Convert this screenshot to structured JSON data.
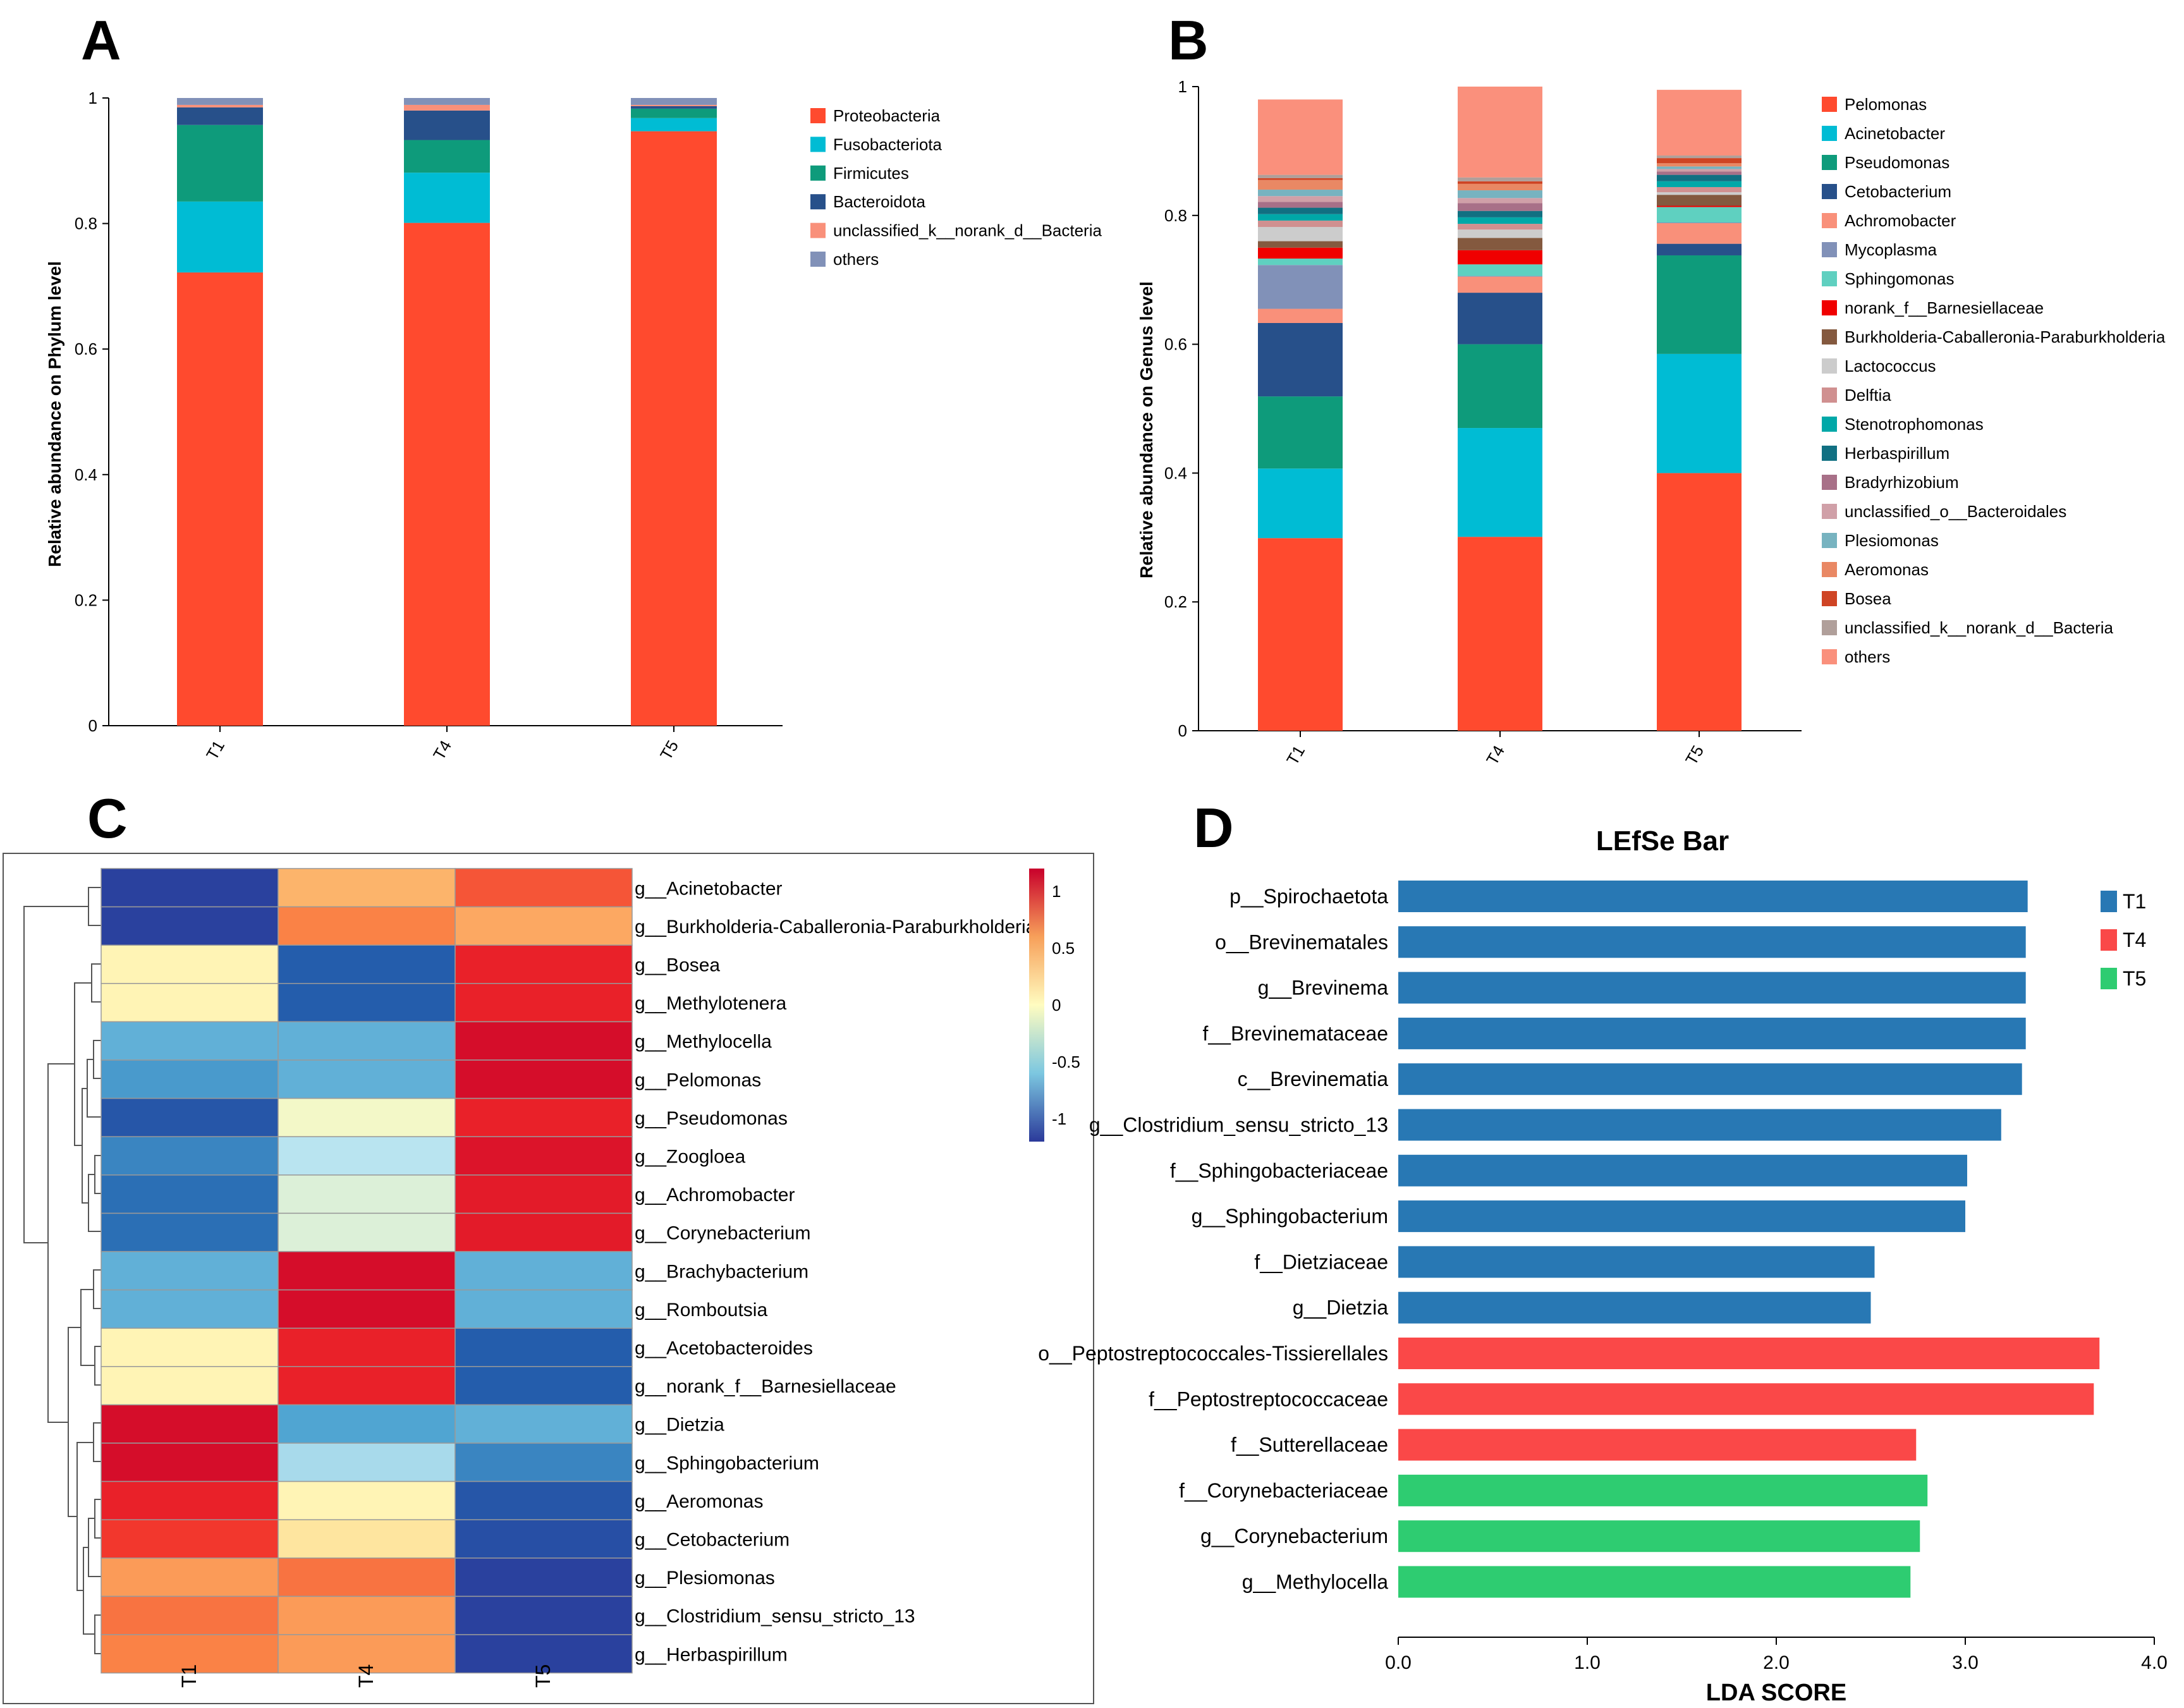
{
  "panels": {
    "A": {
      "label": "A",
      "chart_data": {
        "type": "stacked-bar",
        "categories": [
          "T1",
          "T4",
          "T5"
        ],
        "ylabel": "Relative abundance on Phylum level",
        "ylim": [
          0,
          1
        ],
        "yticks": [
          "0",
          "0.2",
          "0.4",
          "0.6",
          "0.8",
          "1"
        ],
        "series": [
          {
            "name": "Proteobacteria",
            "color": "#ff4a2e",
            "values": [
              0.722,
              0.801,
              0.947
            ]
          },
          {
            "name": "Fusobacteriota",
            "color": "#00bcd4",
            "values": [
              0.113,
              0.08,
              0.021
            ]
          },
          {
            "name": "Firmicutes",
            "color": "#0e9b7b",
            "values": [
              0.122,
              0.052,
              0.015
            ]
          },
          {
            "name": "Bacteroidota",
            "color": "#27508a",
            "values": [
              0.028,
              0.047,
              0.004
            ]
          },
          {
            "name": "unclassified_k__norank_d__Bacteria",
            "color": "#f9907a",
            "values": [
              0.004,
              0.009,
              0.002
            ]
          },
          {
            "name": "others",
            "color": "#8191b8",
            "values": [
              0.011,
              0.011,
              0.011
            ]
          }
        ]
      }
    },
    "B": {
      "label": "B",
      "chart_data": {
        "type": "stacked-bar",
        "categories": [
          "T1",
          "T4",
          "T5"
        ],
        "ylabel": "Relative abundance on Genus level",
        "ylim": [
          0,
          1
        ],
        "yticks": [
          "0",
          "0.2",
          "0.4",
          "0.6",
          "0.8",
          "1"
        ],
        "series": [
          {
            "name": "Pelomonas",
            "color": "#ff4a2e",
            "values": [
              0.299,
              0.301,
              0.4
            ]
          },
          {
            "name": "Acinetobacter",
            "color": "#00bcd4",
            "values": [
              0.108,
              0.169,
              0.185
            ]
          },
          {
            "name": "Pseudomonas",
            "color": "#0e9b7b",
            "values": [
              0.112,
              0.13,
              0.153
            ]
          },
          {
            "name": "Cetobacterium",
            "color": "#27508a",
            "values": [
              0.114,
              0.08,
              0.018
            ]
          },
          {
            "name": "Achromobacter",
            "color": "#f9907a",
            "values": [
              0.022,
              0.025,
              0.032
            ]
          },
          {
            "name": "Mycoplasma",
            "color": "#8191b8",
            "values": [
              0.068,
              0.001,
              0.001
            ]
          },
          {
            "name": "Sphingomonas",
            "color": "#5fd0c0",
            "values": [
              0.01,
              0.018,
              0.024
            ]
          },
          {
            "name": "norank_f__Barnesiellaceae",
            "color": "#f00000",
            "values": [
              0.017,
              0.022,
              0.002
            ]
          },
          {
            "name": "Burkholderia-Caballeronia-Paraburkholderia",
            "color": "#84593f",
            "values": [
              0.01,
              0.019,
              0.017
            ]
          },
          {
            "name": "Lactococcus",
            "color": "#cccccc",
            "values": [
              0.022,
              0.013,
              0.004
            ]
          },
          {
            "name": "Delftia",
            "color": "#d09090",
            "values": [
              0.01,
              0.009,
              0.008
            ]
          },
          {
            "name": "Stenotrophomonas",
            "color": "#00a8a8",
            "values": [
              0.01,
              0.01,
              0.009
            ]
          },
          {
            "name": "Herbaspirillum",
            "color": "#117082",
            "values": [
              0.01,
              0.01,
              0.01
            ]
          },
          {
            "name": "Bradyrhizobium",
            "color": "#a87088",
            "values": [
              0.009,
              0.012,
              0.005
            ]
          },
          {
            "name": "unclassified_o__Bacteroidales",
            "color": "#d0a0a8",
            "values": [
              0.009,
              0.008,
              0.004
            ]
          },
          {
            "name": "Plesiomonas",
            "color": "#77b3c0",
            "values": [
              0.01,
              0.012,
              0.004
            ]
          },
          {
            "name": "Aeromonas",
            "color": "#e98864",
            "values": [
              0.015,
              0.01,
              0.005
            ]
          },
          {
            "name": "Bosea",
            "color": "#cf4424",
            "values": [
              0.003,
              0.004,
              0.008
            ]
          },
          {
            "name": "unclassified_k__norank_d__Bacteria",
            "color": "#b09f9a",
            "values": [
              0.005,
              0.006,
              0.004
            ]
          },
          {
            "name": "others",
            "color": "#fa907c",
            "values": [
              0.117,
              0.141,
              0.102
            ]
          }
        ]
      }
    },
    "C": {
      "label": "C",
      "chart_data": {
        "type": "heatmap",
        "columns": [
          "T1",
          "T4",
          "T5"
        ],
        "rows": [
          "g__Acinetobacter",
          "g__Burkholderia-Caballeronia-Paraburkholderia",
          "g__Bosea",
          "g__Methylotenera",
          "g__Methylocella",
          "g__Pelomonas",
          "g__Pseudomonas",
          "g__Zoogloea",
          "g__Achromobacter",
          "g__Corynebacterium",
          "g__Brachybacterium",
          "g__Romboutsia",
          "g__Acetobacteroides",
          "g__norank_f__Barnesiellaceae",
          "g__Dietzia",
          "g__Sphingobacterium",
          "g__Aeromonas",
          "g__Cetobacterium",
          "g__Plesiomonas",
          "g__Clostridium_sensu_stricto_13",
          "g__Herbaspirillum"
        ],
        "values": [
          [
            -1.15,
            0.4,
            0.75
          ],
          [
            -1.15,
            0.6,
            0.45
          ],
          [
            0.05,
            -0.95,
            0.95
          ],
          [
            0.05,
            -0.95,
            0.95
          ],
          [
            -0.55,
            -0.55,
            1.1
          ],
          [
            -0.65,
            -0.55,
            1.1
          ],
          [
            -1.0,
            -0.05,
            0.95
          ],
          [
            -0.75,
            -0.3,
            1.05
          ],
          [
            -0.85,
            -0.15,
            1.0
          ],
          [
            -0.85,
            -0.15,
            1.0
          ],
          [
            -0.55,
            1.1,
            -0.55
          ],
          [
            -0.55,
            1.1,
            -0.55
          ],
          [
            0.05,
            0.95,
            -0.95
          ],
          [
            0.05,
            0.95,
            -0.95
          ],
          [
            1.1,
            -0.6,
            -0.55
          ],
          [
            1.1,
            -0.35,
            -0.75
          ],
          [
            0.95,
            0.05,
            -1.0
          ],
          [
            0.85,
            0.15,
            -1.05
          ],
          [
            0.5,
            0.65,
            -1.15
          ],
          [
            0.65,
            0.5,
            -1.15
          ],
          [
            0.6,
            0.5,
            -1.15
          ]
        ],
        "colorbar": {
          "ticks": [
            "1",
            "0.5",
            "0",
            "-0.5",
            "-1"
          ],
          "range": [
            -1.2,
            1.2
          ]
        }
      }
    },
    "D": {
      "label": "D",
      "chart_data": {
        "type": "bar",
        "orientation": "horizontal",
        "title": "LEfSe Bar",
        "xlabel": "LDA SCORE",
        "xlim": [
          0,
          4.0
        ],
        "xticks": [
          "0.0",
          "1.0",
          "2.0",
          "3.0",
          "4.0"
        ],
        "legend": [
          {
            "name": "T1",
            "color": "#2878b4"
          },
          {
            "name": "T4",
            "color": "#fa4848"
          },
          {
            "name": "T5",
            "color": "#2ecc71"
          }
        ],
        "bars": [
          {
            "label": "p__Spirochaetota",
            "value": 3.33,
            "group": "T1"
          },
          {
            "label": "o__Brevinematales",
            "value": 3.32,
            "group": "T1"
          },
          {
            "label": "g__Brevinema",
            "value": 3.32,
            "group": "T1"
          },
          {
            "label": "f__Brevinemataceae",
            "value": 3.32,
            "group": "T1"
          },
          {
            "label": "c__Brevinematia",
            "value": 3.3,
            "group": "T1"
          },
          {
            "label": "g__Clostridium_sensu_stricto_13",
            "value": 3.19,
            "group": "T1"
          },
          {
            "label": "f__Sphingobacteriaceae",
            "value": 3.01,
            "group": "T1"
          },
          {
            "label": "g__Sphingobacterium",
            "value": 3.0,
            "group": "T1"
          },
          {
            "label": "f__Dietziaceae",
            "value": 2.52,
            "group": "T1"
          },
          {
            "label": "g__Dietzia",
            "value": 2.5,
            "group": "T1"
          },
          {
            "label": "o__Peptostreptococcales-Tissierellales",
            "value": 3.71,
            "group": "T4"
          },
          {
            "label": "f__Peptostreptococcaceae",
            "value": 3.68,
            "group": "T4"
          },
          {
            "label": "f__Sutterellaceae",
            "value": 2.74,
            "group": "T4"
          },
          {
            "label": "f__Corynebacteriaceae",
            "value": 2.8,
            "group": "T5"
          },
          {
            "label": "g__Corynebacterium",
            "value": 2.76,
            "group": "T5"
          },
          {
            "label": "g__Methylocella",
            "value": 2.71,
            "group": "T5"
          }
        ]
      }
    }
  }
}
